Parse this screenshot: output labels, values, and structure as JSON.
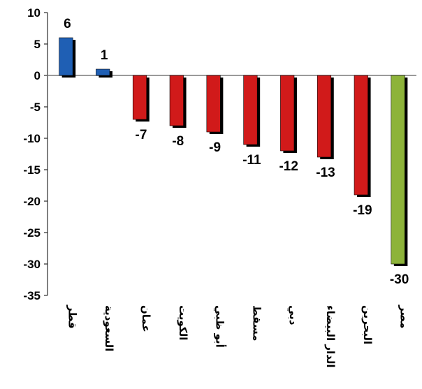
{
  "chart_data": {
    "type": "bar",
    "categories": [
      "قطر",
      "السعودية",
      "عمان",
      "الكويت",
      "أبو ظبي",
      "مسقط",
      "دبي",
      "الدار البيضاء",
      "البحرين",
      "مصر"
    ],
    "values": [
      6,
      1,
      -7,
      -8,
      -9,
      -11,
      -12,
      -13,
      -19,
      -30
    ],
    "bar_colors": [
      "#1f5fb4",
      "#1f5fb4",
      "#d11a1a",
      "#d11a1a",
      "#d11a1a",
      "#d11a1a",
      "#d11a1a",
      "#d11a1a",
      "#d11a1a",
      "#8db33a"
    ],
    "shadow_color": "#000000",
    "ylim": [
      -35,
      10
    ],
    "yticks": [
      10,
      5,
      0,
      -5,
      -10,
      -15,
      -20,
      -25,
      -30,
      -35
    ],
    "title": "",
    "xlabel": "",
    "ylabel": "",
    "grid": false,
    "legend": "none"
  }
}
